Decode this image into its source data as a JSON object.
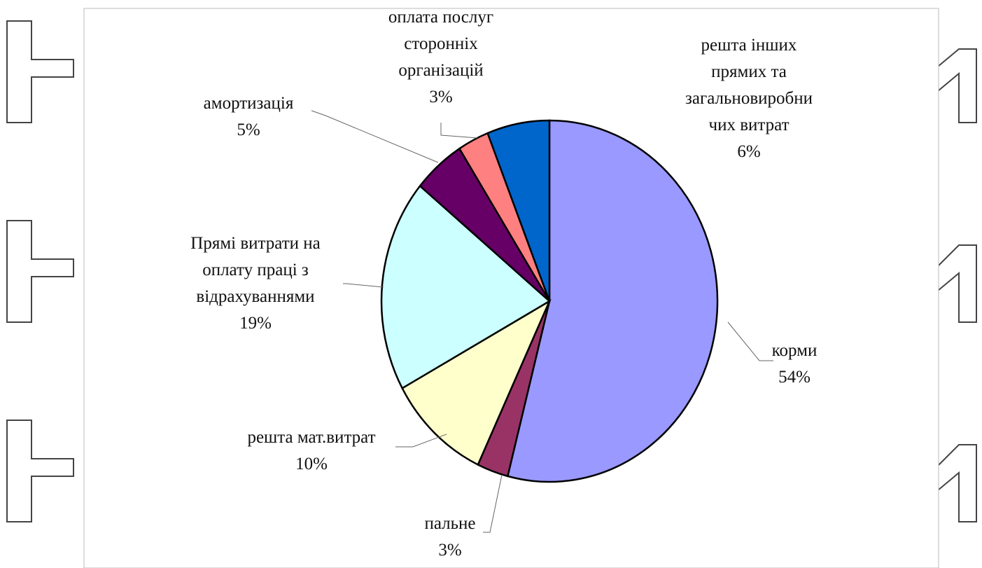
{
  "chart_data": {
    "type": "pie",
    "slices": [
      {
        "label_lines": [
          "корми",
          "54%"
        ],
        "value": 54,
        "color": "#9999ff"
      },
      {
        "label_lines": [
          "пальне",
          "3%"
        ],
        "value": 3,
        "color": "#993366"
      },
      {
        "label_lines": [
          "решта мат.витрат",
          "10%"
        ],
        "value": 10,
        "color": "#ffffcc"
      },
      {
        "label_lines": [
          "Прямі витрати на",
          "оплату праці з",
          "відрахуваннями",
          "19%"
        ],
        "value": 19,
        "color": "#ccffff"
      },
      {
        "label_lines": [
          "амортизація",
          "5%"
        ],
        "value": 5,
        "color": "#660066"
      },
      {
        "label_lines": [
          "оплата послуг",
          "сторонніх",
          "організацій",
          "3%"
        ],
        "value": 3,
        "color": "#ff8080"
      },
      {
        "label_lines": [
          "решта інших",
          "прямих та",
          "загальновиробни",
          "чих витрат",
          "6%"
        ],
        "value": 6,
        "color": "#0066cc"
      }
    ]
  }
}
